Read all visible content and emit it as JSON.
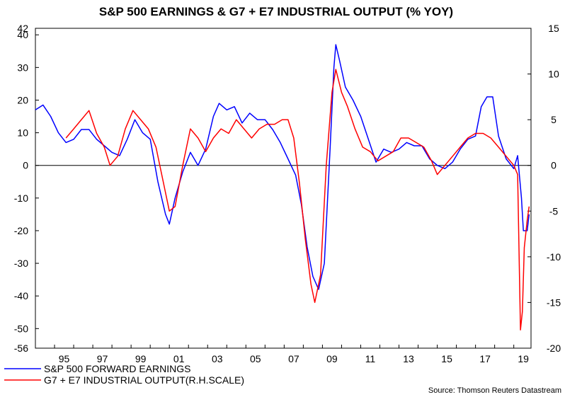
{
  "chart_data": {
    "type": "line",
    "title": "S&P 500 EARNINGS & G7 + E7 INDUSTRIAL OUTPUT (% YOY)",
    "source": "Source: Thomson Reuters Datastream",
    "x_ticks": [
      "95",
      "97",
      "99",
      "01",
      "03",
      "05",
      "07",
      "09",
      "11",
      "13",
      "15",
      "17",
      "19"
    ],
    "x_tick_years": [
      1995,
      1997,
      1999,
      2001,
      2003,
      2005,
      2007,
      2009,
      2011,
      2013,
      2015,
      2017,
      2019
    ],
    "xlim": [
      1994,
      2019.9
    ],
    "left_axis": {
      "ylim": [
        -56,
        42
      ],
      "ticks": [
        42,
        40,
        30,
        20,
        10,
        0,
        -10,
        -20,
        -30,
        -40,
        -50,
        -56
      ],
      "tick_labels": [
        "42",
        "40",
        "30",
        "20",
        "10",
        "0",
        "-10",
        "-20",
        "-30",
        "-40",
        "-50",
        "-56"
      ]
    },
    "right_axis": {
      "ylim": [
        -20,
        15
      ],
      "ticks": [
        15,
        10,
        5,
        0,
        -5,
        -10,
        -15,
        -20
      ],
      "tick_labels": [
        "15",
        "10",
        "5",
        "0",
        "-5",
        "-10",
        "-15",
        "-20"
      ]
    },
    "series": [
      {
        "name": "S&P 500 FORWARD EARNINGS",
        "color": "#0000ff",
        "axis": "left",
        "points": [
          [
            1994.0,
            17
          ],
          [
            1994.4,
            18.5
          ],
          [
            1994.8,
            15
          ],
          [
            1995.2,
            10
          ],
          [
            1995.6,
            7
          ],
          [
            1996.0,
            8
          ],
          [
            1996.4,
            11
          ],
          [
            1996.8,
            11
          ],
          [
            1997.2,
            8
          ],
          [
            1997.6,
            6
          ],
          [
            1998.0,
            4
          ],
          [
            1998.4,
            3
          ],
          [
            1998.8,
            8
          ],
          [
            1999.2,
            14
          ],
          [
            1999.6,
            10
          ],
          [
            2000.0,
            8
          ],
          [
            2000.4,
            -5
          ],
          [
            2000.8,
            -15
          ],
          [
            2001.0,
            -18
          ],
          [
            2001.3,
            -10
          ],
          [
            2001.7,
            -2
          ],
          [
            2002.1,
            4
          ],
          [
            2002.5,
            0
          ],
          [
            2002.9,
            5
          ],
          [
            2003.3,
            15
          ],
          [
            2003.6,
            19
          ],
          [
            2004.0,
            17
          ],
          [
            2004.4,
            18
          ],
          [
            2004.8,
            13
          ],
          [
            2005.2,
            16
          ],
          [
            2005.6,
            14
          ],
          [
            2006.0,
            14
          ],
          [
            2006.4,
            11
          ],
          [
            2006.8,
            7
          ],
          [
            2007.2,
            2
          ],
          [
            2007.6,
            -3
          ],
          [
            2007.9,
            -12
          ],
          [
            2008.2,
            -25
          ],
          [
            2008.5,
            -34
          ],
          [
            2008.8,
            -38
          ],
          [
            2009.1,
            -30
          ],
          [
            2009.4,
            5
          ],
          [
            2009.6,
            30
          ],
          [
            2009.7,
            37
          ],
          [
            2009.9,
            32
          ],
          [
            2010.2,
            24
          ],
          [
            2010.6,
            20
          ],
          [
            2011.0,
            15
          ],
          [
            2011.4,
            8
          ],
          [
            2011.8,
            1
          ],
          [
            2012.2,
            5
          ],
          [
            2012.6,
            4
          ],
          [
            2013.0,
            5
          ],
          [
            2013.4,
            7
          ],
          [
            2013.8,
            6
          ],
          [
            2014.2,
            6
          ],
          [
            2014.6,
            2
          ],
          [
            2015.0,
            0
          ],
          [
            2015.4,
            -1
          ],
          [
            2015.8,
            1
          ],
          [
            2016.2,
            5
          ],
          [
            2016.6,
            8
          ],
          [
            2017.0,
            9
          ],
          [
            2017.3,
            18
          ],
          [
            2017.6,
            21
          ],
          [
            2017.9,
            21
          ],
          [
            2018.2,
            9
          ],
          [
            2018.6,
            2
          ],
          [
            2019.0,
            -1
          ],
          [
            2019.2,
            3
          ],
          [
            2019.4,
            -10
          ],
          [
            2019.5,
            -20
          ],
          [
            2019.7,
            -20
          ],
          [
            2019.8,
            -15
          ]
        ]
      },
      {
        "name": "G7 + E7 INDUSTRIAL OUTPUT(R.H.SCALE)",
        "color": "#ff0000",
        "axis": "right",
        "points": [
          [
            1995.6,
            3
          ],
          [
            1996.0,
            4
          ],
          [
            1996.4,
            5
          ],
          [
            1996.8,
            6
          ],
          [
            1997.2,
            3.5
          ],
          [
            1997.6,
            2
          ],
          [
            1997.9,
            0
          ],
          [
            1998.3,
            1
          ],
          [
            1998.7,
            4
          ],
          [
            1999.1,
            6
          ],
          [
            1999.5,
            5
          ],
          [
            1999.9,
            4
          ],
          [
            2000.3,
            2
          ],
          [
            2000.7,
            -2
          ],
          [
            2001.0,
            -5
          ],
          [
            2001.3,
            -4.5
          ],
          [
            2001.7,
            0
          ],
          [
            2002.1,
            4
          ],
          [
            2002.5,
            3
          ],
          [
            2002.9,
            1.5
          ],
          [
            2003.3,
            3
          ],
          [
            2003.7,
            4
          ],
          [
            2004.1,
            3.5
          ],
          [
            2004.5,
            5
          ],
          [
            2004.9,
            4
          ],
          [
            2005.3,
            3
          ],
          [
            2005.7,
            4
          ],
          [
            2006.1,
            4.5
          ],
          [
            2006.5,
            4.5
          ],
          [
            2006.9,
            5
          ],
          [
            2007.2,
            5
          ],
          [
            2007.5,
            3
          ],
          [
            2007.8,
            -2
          ],
          [
            2008.1,
            -8
          ],
          [
            2008.4,
            -13
          ],
          [
            2008.6,
            -15
          ],
          [
            2008.9,
            -12
          ],
          [
            2009.2,
            0
          ],
          [
            2009.5,
            8
          ],
          [
            2009.7,
            10.5
          ],
          [
            2010.0,
            8
          ],
          [
            2010.3,
            6.5
          ],
          [
            2010.7,
            4
          ],
          [
            2011.1,
            2
          ],
          [
            2011.5,
            1.5
          ],
          [
            2011.9,
            0.5
          ],
          [
            2012.3,
            1
          ],
          [
            2012.7,
            1.5
          ],
          [
            2013.1,
            3
          ],
          [
            2013.5,
            3
          ],
          [
            2013.9,
            2.5
          ],
          [
            2014.3,
            2
          ],
          [
            2014.7,
            0.5
          ],
          [
            2015.0,
            -1
          ],
          [
            2015.4,
            0
          ],
          [
            2015.8,
            1
          ],
          [
            2016.2,
            2
          ],
          [
            2016.6,
            3
          ],
          [
            2017.0,
            3.5
          ],
          [
            2017.4,
            3.5
          ],
          [
            2017.8,
            3
          ],
          [
            2018.2,
            2
          ],
          [
            2018.6,
            1
          ],
          [
            2019.0,
            0
          ],
          [
            2019.2,
            -1
          ],
          [
            2019.35,
            -18
          ],
          [
            2019.45,
            -16
          ],
          [
            2019.55,
            -9
          ],
          [
            2019.7,
            -6
          ],
          [
            2019.8,
            -4.5
          ]
        ]
      }
    ],
    "zero_line": true,
    "legend": {
      "placement": "bottom-left",
      "entries": [
        {
          "label": "S&P 500 FORWARD EARNINGS",
          "color": "#0000ff"
        },
        {
          "label": "G7 + E7 INDUSTRIAL OUTPUT(R.H.SCALE)",
          "color": "#ff0000"
        }
      ]
    }
  }
}
